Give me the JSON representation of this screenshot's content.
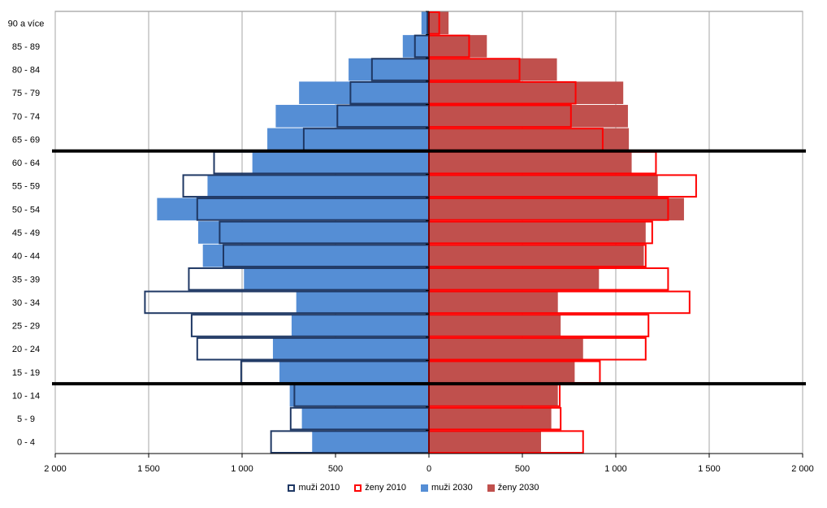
{
  "chart_data": {
    "type": "bar",
    "orientation": "horizontal-population-pyramid",
    "categories": [
      "0 - 4",
      "5 - 9",
      "10 - 14",
      "15 - 19",
      "20 - 24",
      "25 - 29",
      "30 - 34",
      "35 - 39",
      "40 - 44",
      "45 - 49",
      "50 - 54",
      "55 - 59",
      "60 - 64",
      "65 - 69",
      "70 - 74",
      "75 - 79",
      "80 - 84",
      "85 - 89",
      "90 a více"
    ],
    "xlim": [
      -2000,
      2000
    ],
    "xticks": [
      -2000,
      -1500,
      -1000,
      -500,
      0,
      500,
      1000,
      1500,
      2000
    ],
    "xtick_labels": [
      "2 000",
      "1 500",
      "1 000",
      "500",
      "0",
      "500",
      "1 000",
      "1 500",
      "2 000"
    ],
    "grid": "vertical",
    "legend_position": "bottom",
    "reference_lines_between": [
      [
        "10 - 14",
        "15 - 19"
      ],
      [
        "60 - 64",
        "65 - 69"
      ]
    ],
    "series": [
      {
        "name": "muži 2010",
        "side": "left",
        "style": "outline",
        "color": "#1f3864",
        "values": [
          845,
          740,
          720,
          1005,
          1240,
          1270,
          1520,
          1285,
          1100,
          1120,
          1240,
          1315,
          1150,
          670,
          490,
          420,
          305,
          75,
          8
        ]
      },
      {
        "name": "ženy 2010",
        "side": "right",
        "style": "outline",
        "color": "#ff0000",
        "values": [
          825,
          705,
          700,
          915,
          1160,
          1175,
          1395,
          1280,
          1160,
          1195,
          1280,
          1430,
          1215,
          930,
          760,
          785,
          485,
          215,
          55
        ]
      },
      {
        "name": "muži 2030",
        "side": "left",
        "style": "filled",
        "color": "#558ed5",
        "values": [
          625,
          680,
          745,
          800,
          835,
          735,
          710,
          990,
          1210,
          1235,
          1455,
          1185,
          945,
          865,
          820,
          695,
          430,
          140,
          40
        ]
      },
      {
        "name": "ženy 2030",
        "side": "right",
        "style": "filled",
        "color": "#c0504d",
        "values": [
          600,
          655,
          690,
          780,
          825,
          705,
          690,
          910,
          1150,
          1160,
          1365,
          1225,
          1085,
          1070,
          1065,
          1040,
          685,
          310,
          105
        ]
      }
    ]
  }
}
